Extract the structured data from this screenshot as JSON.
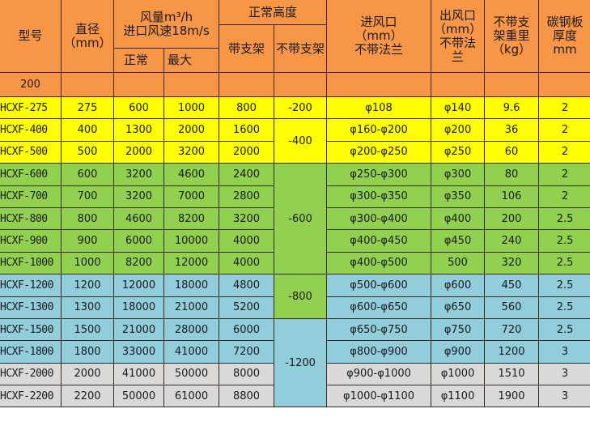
{
  "colors": {
    "header": "#f79646",
    "yellow": "#ffff00",
    "green": "#92d050",
    "blue": "#92cddc",
    "gray": "#d9d9d9"
  },
  "header": {
    "model": "型号",
    "diameter": "直径",
    "diameter_unit": "（mm）",
    "airflow": "风量m³/h",
    "airflow_sub": "进口风速18m/s",
    "airflow_normal": "正常",
    "airflow_max": "最大",
    "height": "正常高度",
    "height_with_stand": "带支架",
    "height_without_stand": "不带支架",
    "inlet": "进风口",
    "inlet_unit": "（mm）",
    "inlet_note": "不带法兰",
    "outlet": "出风口",
    "outlet_unit": "（mm）",
    "outlet_note1": "不带法",
    "outlet_note2": "兰",
    "weight1": "不带支",
    "weight2": "架重里",
    "weight_unit": "（kg）",
    "plate1": "碳钢板",
    "plate2": "厚度",
    "plate_unit": "mm",
    "size_row": "200"
  },
  "rows": [
    {
      "color": "yellow",
      "model": "HCXF-275",
      "d": "275",
      "normal": "600",
      "max": "1000",
      "with_stand": "800",
      "inlet": "φ108",
      "outlet": "φ140",
      "weight": "9.6",
      "plate": "2"
    },
    {
      "color": "yellow",
      "model": "HCXF-400",
      "d": "400",
      "normal": "1300",
      "max": "2000",
      "with_stand": "1600",
      "inlet": "φ160-φ200",
      "outlet": "φ200",
      "weight": "36",
      "plate": "2"
    },
    {
      "color": "yellow",
      "model": "HCXF-500",
      "d": "500",
      "normal": "2000",
      "max": "3200",
      "with_stand": "2000",
      "inlet": "φ200-φ250",
      "outlet": "φ250",
      "weight": "60",
      "plate": "2"
    },
    {
      "color": "green",
      "model": "HCXF-600",
      "d": "600",
      "normal": "3200",
      "max": "4600",
      "with_stand": "2400",
      "inlet": "φ250-φ300",
      "outlet": "φ300",
      "weight": "80",
      "plate": "2"
    },
    {
      "color": "green",
      "model": "HCXF-700",
      "d": "700",
      "normal": "3200",
      "max": "7000",
      "with_stand": "2800",
      "inlet": "φ300-φ350",
      "outlet": "φ350",
      "weight": "106",
      "plate": "2"
    },
    {
      "color": "green",
      "model": "HCXF-800",
      "d": "800",
      "normal": "4600",
      "max": "8200",
      "with_stand": "3200",
      "inlet": "φ300-φ400",
      "outlet": "φ400",
      "weight": "200",
      "plate": "2.5"
    },
    {
      "color": "green",
      "model": "HCXF-900",
      "d": "900",
      "normal": "6000",
      "max": "10000",
      "with_stand": "4000",
      "inlet": "φ400-φ450",
      "outlet": "φ450",
      "weight": "240",
      "plate": "2.5"
    },
    {
      "color": "green",
      "model": "HCXF-1000",
      "d": "1000",
      "normal": "8200",
      "max": "12000",
      "with_stand": "4000",
      "inlet": "φ400-φ500",
      "outlet": "500",
      "weight": "320",
      "plate": "2.5"
    },
    {
      "color": "blue",
      "model": "HCXF-1200",
      "d": "1200",
      "normal": "12000",
      "max": "18000",
      "with_stand": "4800",
      "inlet": "φ500-φ600",
      "outlet": "φ600",
      "weight": "450",
      "plate": "2.5"
    },
    {
      "color": "blue",
      "model": "HCXF-1300",
      "d": "1300",
      "normal": "18000",
      "max": "21000",
      "with_stand": "5200",
      "inlet": "φ600-φ650",
      "outlet": "φ650",
      "weight": "560",
      "plate": "2.5"
    },
    {
      "color": "blue",
      "model": "HCXF-1500",
      "d": "1500",
      "normal": "21000",
      "max": "28000",
      "with_stand": "6000",
      "inlet": "φ650-φ750",
      "outlet": "φ750",
      "weight": "720",
      "plate": "2.5"
    },
    {
      "color": "blue",
      "model": "HCXF-1800",
      "d": "1800",
      "normal": "33000",
      "max": "41000",
      "with_stand": "7200",
      "inlet": "φ800-φ900",
      "outlet": "φ900",
      "weight": "1200",
      "plate": "3"
    },
    {
      "color": "gray",
      "model": "HCXF-2000",
      "d": "2000",
      "normal": "41000",
      "max": "50000",
      "with_stand": "8000",
      "inlet": "φ900-φ1000",
      "outlet": "φ1000",
      "weight": "1510",
      "plate": "3"
    },
    {
      "color": "gray",
      "model": "HCXF-2200",
      "d": "2200",
      "normal": "50000",
      "max": "61000",
      "with_stand": "8800",
      "inlet": "φ1000-φ1100",
      "outlet": "φ1100",
      "weight": "1900",
      "plate": "3"
    }
  ],
  "without_stand_groups": [
    {
      "value": "-200",
      "rows": 1,
      "color": "yellow"
    },
    {
      "value": "-400",
      "rows": 2,
      "color": "yellow"
    },
    {
      "value": "-600",
      "rows": 5,
      "color": "green"
    },
    {
      "value": "-800",
      "rows": 2,
      "color": "green"
    },
    {
      "value": "-1200",
      "rows": 4,
      "color": "blue"
    }
  ]
}
